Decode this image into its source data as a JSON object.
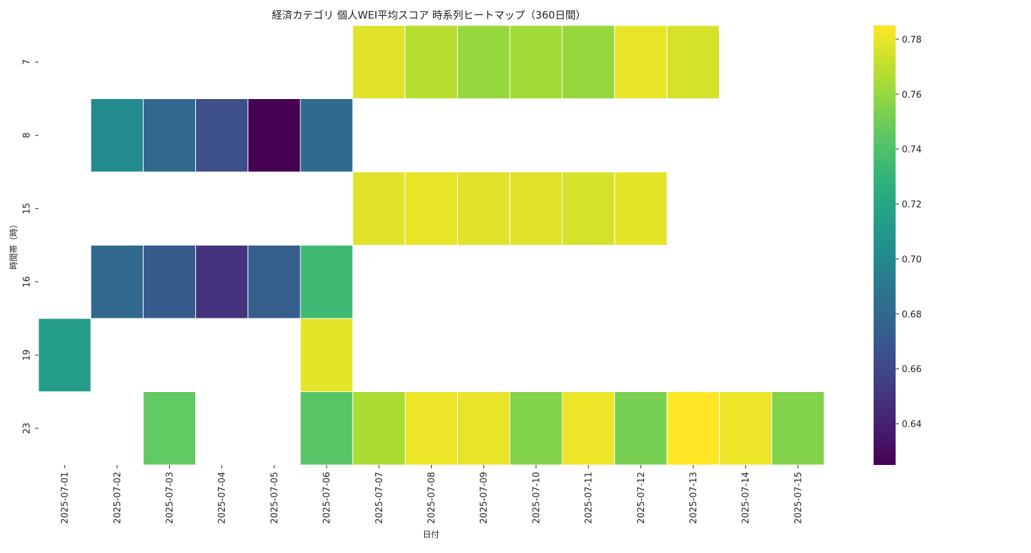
{
  "chart_data": {
    "type": "heatmap",
    "title": "経済カテゴリ 個人WEI平均スコア 時系列ヒートマップ（360日間）",
    "xlabel": "日付",
    "ylabel": "時間帯（時）",
    "x": [
      "2025-07-01",
      "2025-07-02",
      "2025-07-03",
      "2025-07-04",
      "2025-07-05",
      "2025-07-06",
      "2025-07-07",
      "2025-07-08",
      "2025-07-09",
      "2025-07-10",
      "2025-07-11",
      "2025-07-12",
      "2025-07-13",
      "2025-07-14",
      "2025-07-15"
    ],
    "y": [
      "7",
      "8",
      "15",
      "16",
      "19",
      "23"
    ],
    "values": [
      [
        null,
        null,
        null,
        null,
        null,
        null,
        0.778,
        0.768,
        0.76,
        0.763,
        0.76,
        0.78,
        0.775,
        null,
        null
      ],
      [
        null,
        0.701,
        0.68,
        0.664,
        0.625,
        0.681,
        null,
        null,
        null,
        null,
        null,
        null,
        null,
        null,
        null
      ],
      [
        null,
        null,
        null,
        null,
        null,
        null,
        0.778,
        0.78,
        0.778,
        0.778,
        0.775,
        0.779,
        null,
        null,
        null
      ],
      [
        null,
        0.68,
        0.671,
        0.649,
        0.673,
        0.734,
        null,
        null,
        null,
        null,
        null,
        null,
        null,
        null,
        null
      ],
      [
        0.714,
        null,
        null,
        null,
        null,
        0.779,
        null,
        null,
        null,
        null,
        null,
        null,
        null,
        null,
        null
      ],
      [
        null,
        null,
        0.746,
        null,
        null,
        0.743,
        0.765,
        0.781,
        0.78,
        0.755,
        0.781,
        0.752,
        0.785,
        0.781,
        0.755
      ]
    ],
    "colorbar": {
      "min": 0.625,
      "max": 0.785,
      "ticks": [
        0.64,
        0.66,
        0.68,
        0.7,
        0.72,
        0.74,
        0.76,
        0.78
      ],
      "colormap": "viridis"
    },
    "grid": false
  },
  "colors": {
    "background": "#ffffff",
    "cell_border": "#ffffff",
    "text": "#222222"
  }
}
